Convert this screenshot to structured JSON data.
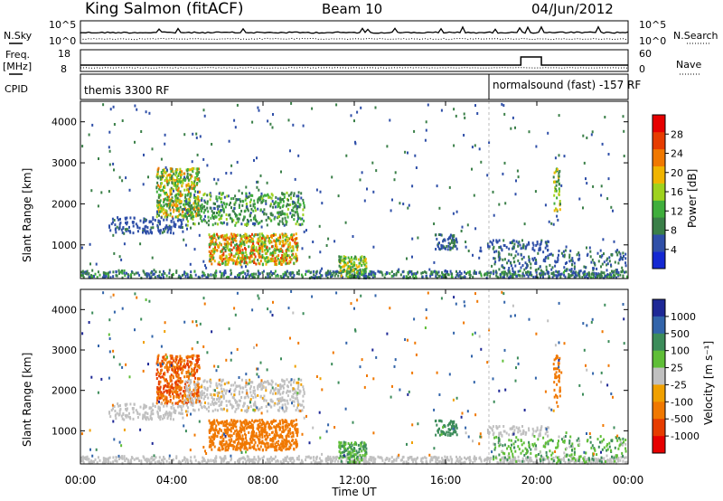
{
  "header": {
    "station": "King Salmon (fitACF)",
    "beam": "Beam 10",
    "date": "04/Jun/2012"
  },
  "noise_panel": {
    "left_label": "N.Sky",
    "left_ticks": [
      "10^5",
      "10^0"
    ],
    "right_ticks": [
      "10^5",
      "10^0"
    ],
    "right_label": "N.Search"
  },
  "freq_panel": {
    "left_label_1": "Freq.",
    "left_label_2": "[MHz]",
    "left_ticks": [
      "18",
      "8"
    ],
    "right_ticks": [
      "60",
      "0"
    ],
    "right_label": "Nave"
  },
  "cpid_panel": {
    "label": "CPID",
    "program_1": "themis 3300 RF",
    "program_2": "normalsound (fast) -157 RF"
  },
  "colors": {
    "power_scale": [
      "#1428d2",
      "#2f4fa8",
      "#3a7f48",
      "#3fae3c",
      "#9ed21e",
      "#f0b400",
      "#f07800",
      "#e63c00",
      "#e60000"
    ],
    "velocity_scale": [
      "#1e2896",
      "#3264aa",
      "#3c8c5a",
      "#5fbe37",
      "#c0c0c0",
      "#f0a000",
      "#f07800",
      "#e63c00",
      "#e60000"
    ]
  },
  "chart_data": [
    {
      "type": "heatmap",
      "name": "power",
      "ylabel": "Slant Range [km]",
      "yticks": [
        "1000",
        "2000",
        "3000",
        "4000"
      ],
      "ylim": [
        180,
        4500
      ],
      "xlim": [
        0,
        24
      ],
      "colorbar_label": "Power [dB]",
      "colorbar_ticks": [
        "4",
        "8",
        "12",
        "16",
        "20",
        "24",
        "28"
      ],
      "colorbar_range": [
        0,
        32
      ]
    },
    {
      "type": "heatmap",
      "name": "velocity",
      "ylabel": "Slant Range [km]",
      "yticks": [
        "1000",
        "2000",
        "3000",
        "4000"
      ],
      "ylim": [
        180,
        4500
      ],
      "xlim": [
        0,
        24
      ],
      "colorbar_label": "Velocity [m s⁻¹]",
      "colorbar_ticks": [
        "1000",
        "500",
        "100",
        "25",
        "-25",
        "-100",
        "-500",
        "-1000"
      ]
    }
  ],
  "xaxis": {
    "ticks": [
      "00:00",
      "04:00",
      "08:00",
      "12:00",
      "16:00",
      "20:00",
      "00:00"
    ],
    "label": "Time UT"
  }
}
